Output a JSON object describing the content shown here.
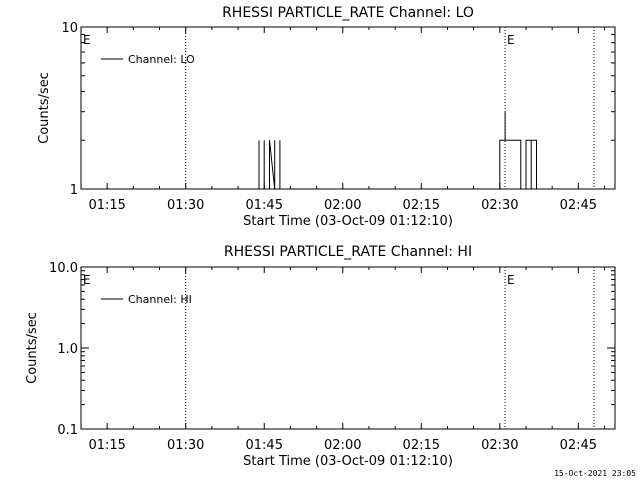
{
  "chart_data": [
    {
      "type": "line",
      "title": "RHESSI PARTICLE_RATE Channel: LO",
      "xlabel": "Start Time (03-Oct-09 01:12:10)",
      "ylabel": "Counts/sec",
      "yscale": "log",
      "ylim": [
        1,
        10
      ],
      "yticks": [
        "1",
        "10"
      ],
      "xlim": [
        "01:10",
        "02:52"
      ],
      "xticks": [
        "01:15",
        "01:30",
        "01:45",
        "02:00",
        "02:15",
        "02:30",
        "02:45"
      ],
      "grid": false,
      "legend": {
        "placement": "top-left",
        "entries": [
          "Channel: LO"
        ]
      },
      "events": [
        {
          "time": "01:30",
          "label": ""
        },
        {
          "time": "02:31",
          "label": "E"
        },
        {
          "time": "02:48",
          "label": ""
        }
      ],
      "edge_labels": [
        {
          "time": "01:10",
          "label": "E"
        }
      ],
      "series": [
        {
          "name": "Channel: LO",
          "x": [
            "01:10",
            "01:44",
            "01:44",
            "01:44",
            "01:45",
            "01:45",
            "01:45",
            "01:45",
            "01:45",
            "01:46",
            "01:46",
            "01:46",
            "01:47",
            "01:47",
            "01:47",
            "01:47",
            "01:47",
            "01:48",
            "01:48",
            "01:48",
            "01:48",
            "01:48",
            "01:49",
            "01:49",
            "02:30",
            "02:30",
            "02:31",
            "02:31",
            "02:31",
            "02:32",
            "02:32",
            "02:32",
            "02:33",
            "02:33",
            "02:34",
            "02:34",
            "02:35",
            "02:35",
            "02:35",
            "02:36",
            "02:36",
            "02:36",
            "02:37",
            "02:37",
            "02:52"
          ],
          "y": [
            1,
            1,
            2,
            1,
            1,
            2,
            1,
            2,
            1,
            1,
            1,
            2,
            1,
            2,
            1,
            2,
            1,
            1,
            2,
            1,
            2,
            1,
            1,
            1,
            1,
            2,
            2,
            3,
            2,
            2,
            2,
            2,
            2,
            2,
            2,
            1,
            1,
            2,
            2,
            2,
            1,
            2,
            2,
            1,
            1
          ]
        }
      ]
    },
    {
      "type": "line",
      "title": "RHESSI PARTICLE_RATE Channel: HI",
      "xlabel": "Start Time (03-Oct-09 01:12:10)",
      "ylabel": "Counts/sec",
      "yscale": "log",
      "ylim": [
        0.1,
        10
      ],
      "yticks": [
        "0.1",
        "1.0",
        "10.0"
      ],
      "xlim": [
        "01:10",
        "02:52"
      ],
      "xticks": [
        "01:15",
        "01:30",
        "01:45",
        "02:00",
        "02:15",
        "02:30",
        "02:45"
      ],
      "grid": false,
      "legend": {
        "placement": "top-left",
        "entries": [
          "Channel: HI"
        ]
      },
      "events": [
        {
          "time": "01:30",
          "label": ""
        },
        {
          "time": "02:31",
          "label": "E"
        },
        {
          "time": "02:48",
          "label": ""
        }
      ],
      "edge_labels": [
        {
          "time": "01:10",
          "label": "E"
        }
      ],
      "series": [
        {
          "name": "Channel: HI",
          "x": [],
          "y": []
        }
      ]
    }
  ],
  "footer": {
    "timestamp": "15-Oct-2021 23:05"
  }
}
